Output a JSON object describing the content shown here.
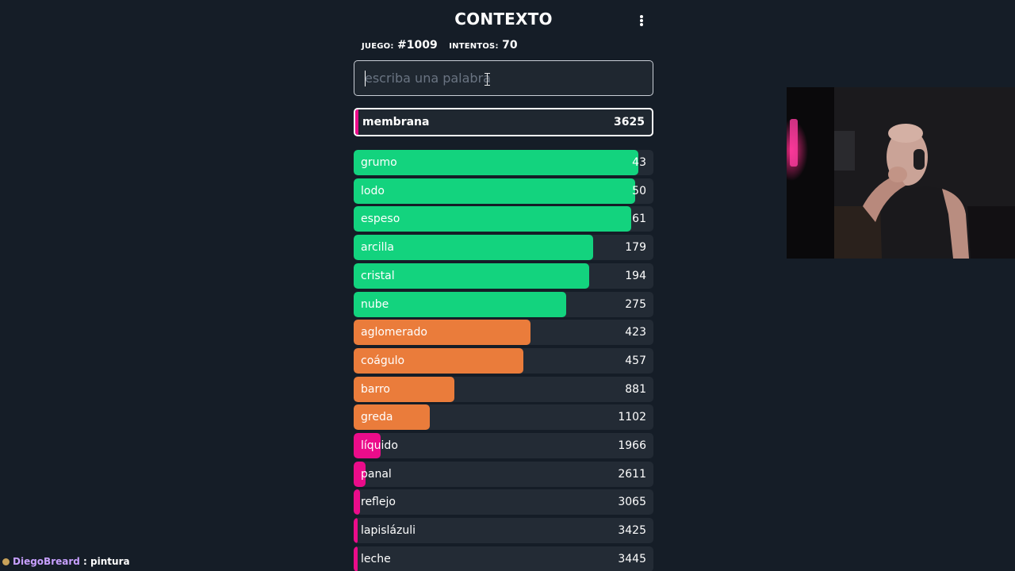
{
  "header": {
    "title": "CONTEXTO"
  },
  "meta": {
    "game_label": "JUEGO:",
    "game_value": "#1009",
    "attempts_label": "INTENTOS:",
    "attempts_value": "70"
  },
  "search": {
    "value": "",
    "placeholder": "escriba una palabra"
  },
  "colors": {
    "green": "#13d37e",
    "orange": "#ea7c3b",
    "pink": "#eb0c8a",
    "row_bg": "#232b35"
  },
  "current_guess": {
    "word": "membrana",
    "score": "3625",
    "color": "pink"
  },
  "guesses": [
    {
      "word": "grumo",
      "score": "43",
      "color": "green",
      "fill": 0.95
    },
    {
      "word": "lodo",
      "score": "50",
      "color": "green",
      "fill": 0.94
    },
    {
      "word": "espeso",
      "score": "61",
      "color": "green",
      "fill": 0.925
    },
    {
      "word": "arcilla",
      "score": "179",
      "color": "green",
      "fill": 0.8
    },
    {
      "word": "cristal",
      "score": "194",
      "color": "green",
      "fill": 0.785
    },
    {
      "word": "nube",
      "score": "275",
      "color": "green",
      "fill": 0.71
    },
    {
      "word": "aglomerado",
      "score": "423",
      "color": "orange",
      "fill": 0.59
    },
    {
      "word": "coágulo",
      "score": "457",
      "color": "orange",
      "fill": 0.565
    },
    {
      "word": "barro",
      "score": "881",
      "color": "orange",
      "fill": 0.335
    },
    {
      "word": "greda",
      "score": "1102",
      "color": "orange",
      "fill": 0.255
    },
    {
      "word": "líquido",
      "score": "1966",
      "color": "pink",
      "fill": 0.09
    },
    {
      "word": "panal",
      "score": "2611",
      "color": "pink",
      "fill": 0.04
    },
    {
      "word": "reflejo",
      "score": "3065",
      "color": "pink",
      "fill": 0.022
    },
    {
      "word": "lapislázuli",
      "score": "3425",
      "color": "pink",
      "fill": 0.014
    },
    {
      "word": "leche",
      "score": "3445",
      "color": "pink",
      "fill": 0.013
    }
  ],
  "chat": {
    "user": "DiegoBreard",
    "separator": ":",
    "message": "pintura"
  }
}
